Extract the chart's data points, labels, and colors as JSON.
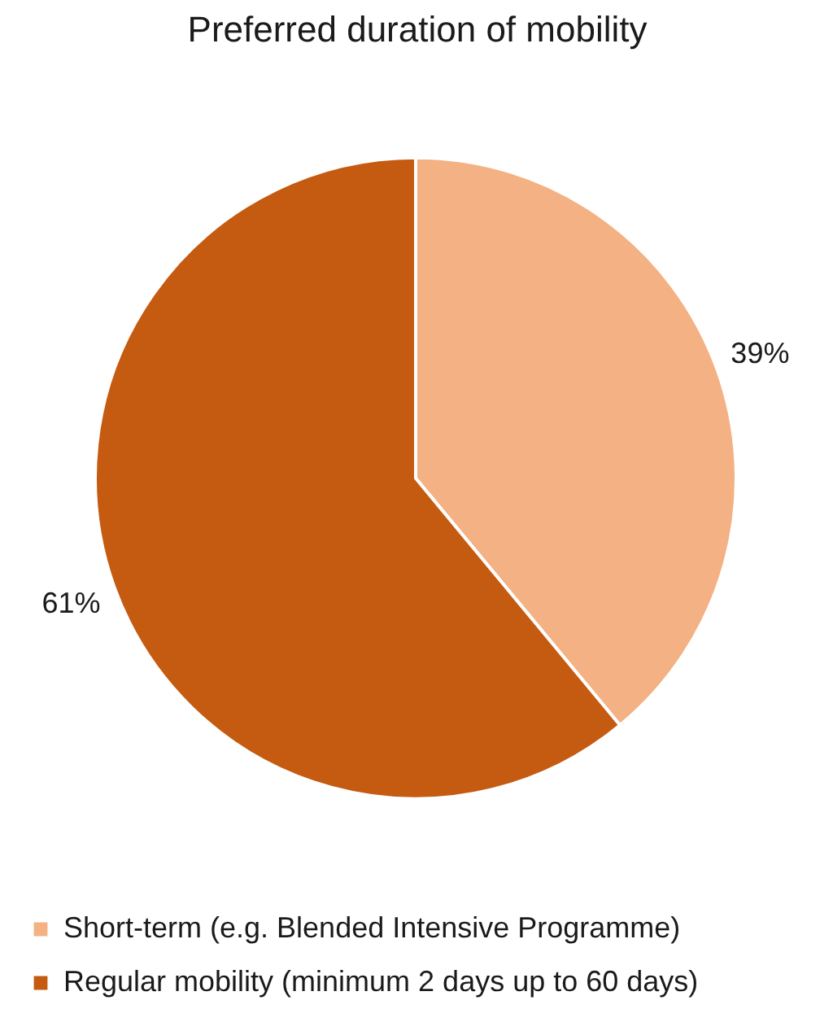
{
  "chart_data": {
    "type": "pie",
    "title": "Preferred duration of mobility",
    "categories": [
      "Short-term (e.g. Blended Intensive Programme)",
      "Regular mobility (minimum 2 days up to 60 days)"
    ],
    "values": [
      39,
      61
    ],
    "colors": [
      "#f4b183",
      "#c55a11"
    ],
    "value_labels": [
      "39%",
      "61%"
    ],
    "legend": "bottom"
  }
}
